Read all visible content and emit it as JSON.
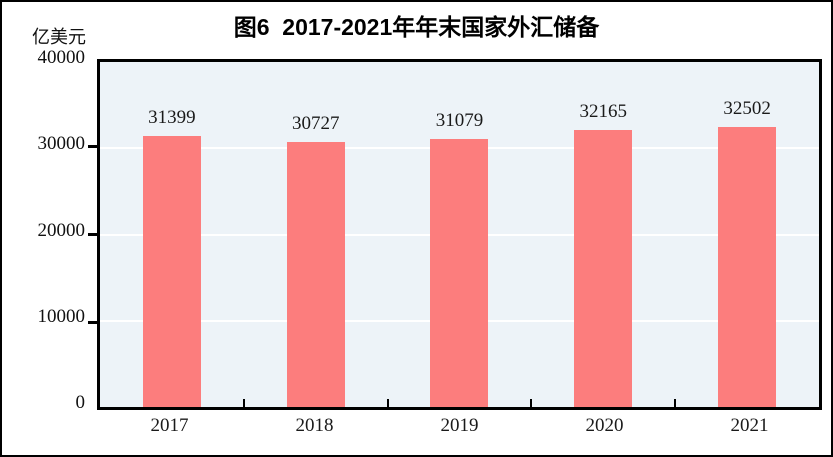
{
  "title": "图6  2017-2021年年末国家外汇储备",
  "unit_label": "亿美元",
  "colors": {
    "bar": "#FC7D7D",
    "plot_background": "#EDF3F8",
    "gridline": "#FFFFFF",
    "axis": "#000000",
    "text": "#111111"
  },
  "chart_data": {
    "type": "bar",
    "title": "图6  2017-2021年年末国家外汇储备",
    "categories": [
      "2017",
      "2018",
      "2019",
      "2020",
      "2021"
    ],
    "values": [
      31399,
      30727,
      31079,
      32165,
      32502
    ],
    "xlabel": "",
    "ylabel": "亿美元",
    "ylim": [
      0,
      40000
    ],
    "y_ticks": [
      0,
      10000,
      20000,
      30000,
      40000
    ],
    "grid": true,
    "gridline_levels": [
      10000,
      20000,
      30000
    ],
    "data_labels": true,
    "legend": false
  }
}
